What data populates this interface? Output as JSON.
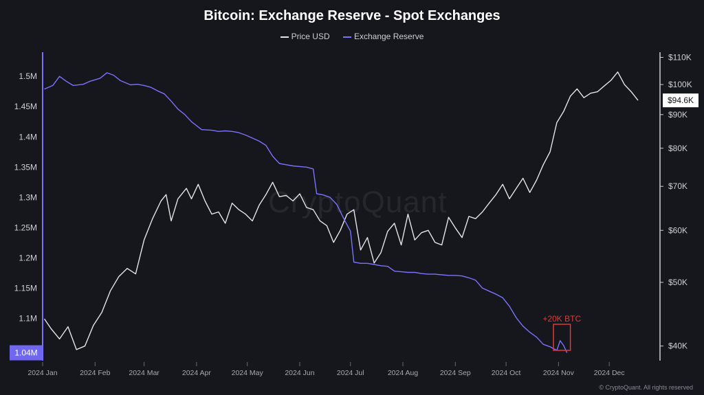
{
  "chart_data": {
    "type": "line",
    "title": "Bitcoin: Exchange Reserve - Spot Exchanges",
    "x_ticks": [
      "2024 Jan",
      "2024 Feb",
      "2024 Mar",
      "2024 Apr",
      "2024 May",
      "2024 Jun",
      "2024 Jul",
      "2024 Aug",
      "2024 Sep",
      "2024 Oct",
      "2024 Nov",
      "2024 Dec"
    ],
    "left_axis": {
      "ticks": [
        "1.5M",
        "1.45M",
        "1.4M",
        "1.35M",
        "1.3M",
        "1.25M",
        "1.2M",
        "1.15M",
        "1.1M"
      ],
      "range": [
        1030000,
        1540000
      ],
      "current_label": "1.04M"
    },
    "right_axis": {
      "ticks": [
        "$110K",
        "$100K",
        "$90K",
        "$80K",
        "$70K",
        "$60K",
        "$50K",
        "$40K"
      ],
      "scale": "log",
      "range": [
        38000,
        112000
      ],
      "current_label": "$94.6K"
    },
    "series": [
      {
        "name": "Price USD",
        "color": "#e6e6e6",
        "axis": "right",
        "points": [
          [
            1,
            44000
          ],
          [
            5,
            42500
          ],
          [
            10,
            41000
          ],
          [
            15,
            42800
          ],
          [
            20,
            39500
          ],
          [
            25,
            40000
          ],
          [
            30,
            43000
          ],
          [
            35,
            45000
          ],
          [
            40,
            48500
          ],
          [
            45,
            51000
          ],
          [
            50,
            52500
          ],
          [
            55,
            51500
          ],
          [
            60,
            58000
          ],
          [
            65,
            62500
          ],
          [
            70,
            66500
          ],
          [
            73,
            68000
          ],
          [
            76,
            62000
          ],
          [
            80,
            67000
          ],
          [
            85,
            69500
          ],
          [
            88,
            67000
          ],
          [
            92,
            70500
          ],
          [
            96,
            66500
          ],
          [
            100,
            63500
          ],
          [
            104,
            64000
          ],
          [
            108,
            61500
          ],
          [
            112,
            66000
          ],
          [
            116,
            64500
          ],
          [
            120,
            63500
          ],
          [
            124,
            62000
          ],
          [
            128,
            65500
          ],
          [
            132,
            68000
          ],
          [
            136,
            71000
          ],
          [
            140,
            67500
          ],
          [
            144,
            67800
          ],
          [
            148,
            66500
          ],
          [
            152,
            68200
          ],
          [
            156,
            65000
          ],
          [
            160,
            64500
          ],
          [
            164,
            62000
          ],
          [
            168,
            61000
          ],
          [
            172,
            57500
          ],
          [
            176,
            60000
          ],
          [
            180,
            63500
          ],
          [
            184,
            64500
          ],
          [
            188,
            56000
          ],
          [
            192,
            58500
          ],
          [
            196,
            53500
          ],
          [
            200,
            55500
          ],
          [
            204,
            59800
          ],
          [
            208,
            61500
          ],
          [
            212,
            57000
          ],
          [
            216,
            63500
          ],
          [
            220,
            58000
          ],
          [
            224,
            59500
          ],
          [
            228,
            60000
          ],
          [
            232,
            57500
          ],
          [
            236,
            57000
          ],
          [
            240,
            62800
          ],
          [
            244,
            60500
          ],
          [
            248,
            58500
          ],
          [
            252,
            63000
          ],
          [
            256,
            62500
          ],
          [
            260,
            64000
          ],
          [
            264,
            66000
          ],
          [
            268,
            68000
          ],
          [
            272,
            70500
          ],
          [
            276,
            67000
          ],
          [
            280,
            69500
          ],
          [
            284,
            72000
          ],
          [
            288,
            68500
          ],
          [
            292,
            71500
          ],
          [
            296,
            75500
          ],
          [
            300,
            79000
          ],
          [
            304,
            87500
          ],
          [
            308,
            91000
          ],
          [
            312,
            96000
          ],
          [
            316,
            98500
          ],
          [
            320,
            95500
          ],
          [
            324,
            97000
          ],
          [
            328,
            97500
          ],
          [
            332,
            99500
          ],
          [
            336,
            101500
          ],
          [
            340,
            104500
          ],
          [
            344,
            100000
          ],
          [
            348,
            97500
          ],
          [
            352,
            94600
          ]
        ]
      },
      {
        "name": "Exchange Reserve",
        "color": "#7b73ff",
        "axis": "left",
        "points": [
          [
            1,
            1479000
          ],
          [
            6,
            1485000
          ],
          [
            10,
            1500000
          ],
          [
            14,
            1492000
          ],
          [
            18,
            1485000
          ],
          [
            24,
            1487000
          ],
          [
            28,
            1492000
          ],
          [
            34,
            1497000
          ],
          [
            38,
            1506000
          ],
          [
            42,
            1502000
          ],
          [
            46,
            1493000
          ],
          [
            52,
            1486000
          ],
          [
            56,
            1487000
          ],
          [
            60,
            1485000
          ],
          [
            64,
            1482000
          ],
          [
            68,
            1476000
          ],
          [
            72,
            1471000
          ],
          [
            76,
            1459000
          ],
          [
            80,
            1446000
          ],
          [
            84,
            1437000
          ],
          [
            88,
            1425000
          ],
          [
            94,
            1412000
          ],
          [
            100,
            1411000
          ],
          [
            104,
            1409000
          ],
          [
            108,
            1410000
          ],
          [
            112,
            1409000
          ],
          [
            116,
            1407000
          ],
          [
            120,
            1403000
          ],
          [
            124,
            1398000
          ],
          [
            128,
            1393000
          ],
          [
            132,
            1386000
          ],
          [
            136,
            1368000
          ],
          [
            140,
            1356000
          ],
          [
            144,
            1354000
          ],
          [
            148,
            1352000
          ],
          [
            152,
            1351000
          ],
          [
            156,
            1350000
          ],
          [
            160,
            1347000
          ],
          [
            162,
            1306000
          ],
          [
            166,
            1304000
          ],
          [
            170,
            1300000
          ],
          [
            174,
            1288000
          ],
          [
            178,
            1265000
          ],
          [
            182,
            1244000
          ],
          [
            184,
            1193000
          ],
          [
            188,
            1191000
          ],
          [
            192,
            1191000
          ],
          [
            196,
            1189000
          ],
          [
            200,
            1187000
          ],
          [
            204,
            1186000
          ],
          [
            208,
            1178000
          ],
          [
            212,
            1177000
          ],
          [
            216,
            1176000
          ],
          [
            220,
            1176000
          ],
          [
            224,
            1174000
          ],
          [
            228,
            1173000
          ],
          [
            232,
            1173000
          ],
          [
            236,
            1172000
          ],
          [
            240,
            1171000
          ],
          [
            244,
            1171000
          ],
          [
            248,
            1170000
          ],
          [
            252,
            1167000
          ],
          [
            256,
            1163000
          ],
          [
            260,
            1150000
          ],
          [
            264,
            1145000
          ],
          [
            268,
            1140000
          ],
          [
            272,
            1134000
          ],
          [
            276,
            1120000
          ],
          [
            280,
            1101000
          ],
          [
            284,
            1087000
          ],
          [
            288,
            1077000
          ],
          [
            292,
            1069000
          ],
          [
            296,
            1057000
          ],
          [
            300,
            1053000
          ],
          [
            304,
            1047000
          ],
          [
            306,
            1063000
          ],
          [
            308,
            1055000
          ],
          [
            310,
            1043000
          ]
        ]
      }
    ],
    "annotation": {
      "text": "+20K BTC",
      "color": "#e53935",
      "x_start": 302,
      "x_end": 312
    }
  },
  "watermark": "CryptoQuant",
  "copyright": "© CryptoQuant. All rights reserved"
}
